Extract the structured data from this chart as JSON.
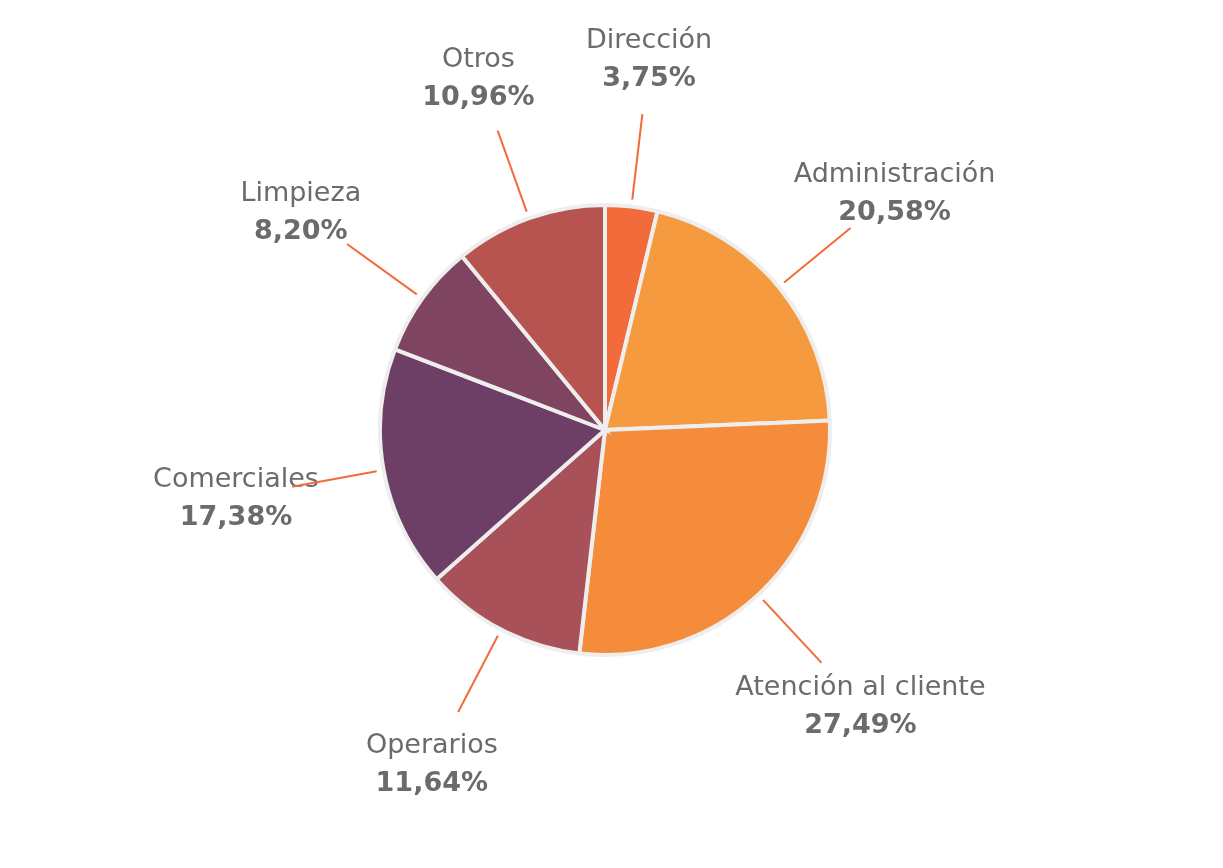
{
  "chart_data": {
    "type": "pie",
    "categories": [
      "Dirección",
      "Administración",
      "Atención al cliente",
      "Operarios",
      "Comerciales",
      "Limpieza",
      "Otros"
    ],
    "values": [
      3.75,
      20.58,
      27.49,
      11.64,
      17.38,
      8.2,
      10.96
    ],
    "value_labels": [
      "3,75%",
      "20,58%",
      "27,49%",
      "11,64%",
      "17,38%",
      "8,20%",
      "10,96%"
    ],
    "colors": [
      "#f26b3a",
      "#f59a3e",
      "#f58c3c",
      "#a85158",
      "#6e3f66",
      "#7f4560",
      "#b8544f"
    ]
  }
}
